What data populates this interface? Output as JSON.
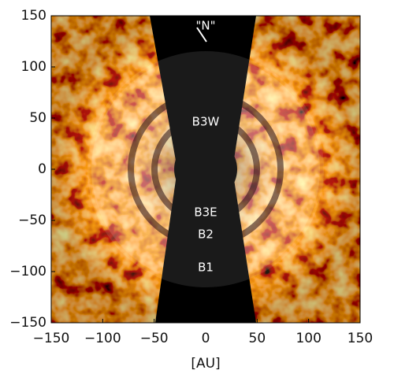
{
  "chart_data": {
    "type": "image",
    "xlabel": "[AU]",
    "xlim": [
      -150,
      150
    ],
    "ylim": [
      -150,
      150
    ],
    "xticks": [
      {
        "value": -150,
        "label": "−150"
      },
      {
        "value": -100,
        "label": "−100"
      },
      {
        "value": -50,
        "label": "−50"
      },
      0,
      50,
      100,
      150
    ],
    "yticks": [
      {
        "value": -150,
        "label": "−150"
      },
      {
        "value": -100,
        "label": "−100"
      },
      {
        "value": -50,
        "label": "−50"
      },
      0,
      50,
      100,
      150
    ],
    "annotations": [
      "\"N\"",
      "B3W",
      "B3E",
      "B2",
      "B1"
    ]
  }
}
